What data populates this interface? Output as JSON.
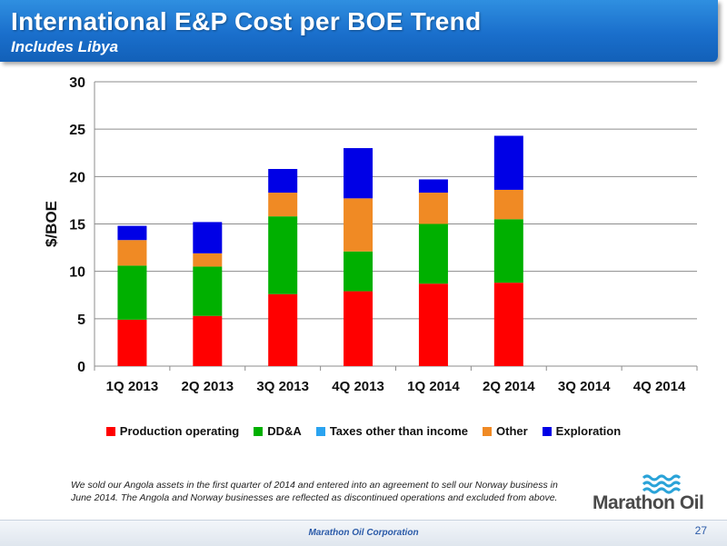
{
  "header": {
    "title": "International E&P Cost per BOE Trend",
    "subtitle": "Includes Libya"
  },
  "chart_data": {
    "type": "bar",
    "stacked": true,
    "title": "",
    "xlabel": "",
    "ylabel": "$/BOE",
    "ylim": [
      0,
      30
    ],
    "yticks": [
      0,
      5,
      10,
      15,
      20,
      25,
      30
    ],
    "grid": true,
    "legend_position": "bottom",
    "categories": [
      "1Q 2013",
      "2Q 2013",
      "3Q 2013",
      "4Q 2013",
      "1Q 2014",
      "2Q 2014",
      "3Q 2014",
      "4Q 2014"
    ],
    "series": [
      {
        "name": "Production operating",
        "color": "#ff0000",
        "values": [
          4.9,
          5.3,
          7.6,
          7.9,
          8.7,
          8.8,
          null,
          null
        ]
      },
      {
        "name": "DD&A",
        "color": "#00b000",
        "values": [
          5.7,
          5.2,
          8.2,
          4.2,
          6.3,
          6.7,
          null,
          null
        ]
      },
      {
        "name": "Taxes other than income",
        "color": "#2aa3f0",
        "values": [
          0,
          0,
          0,
          0,
          0,
          0,
          null,
          null
        ]
      },
      {
        "name": "Other",
        "color": "#f08a24",
        "values": [
          2.7,
          1.4,
          2.5,
          5.6,
          3.3,
          3.1,
          null,
          null
        ]
      },
      {
        "name": "Exploration",
        "color": "#0000e6",
        "values": [
          1.5,
          3.3,
          2.5,
          5.3,
          1.4,
          5.7,
          null,
          null
        ]
      }
    ]
  },
  "footnote": "We sold our Angola assets in the first quarter of 2014 and entered into an agreement to sell our Norway business in June 2014. The Angola and Norway businesses are reflected as discontinued operations and excluded from above.",
  "logo": {
    "text": "Marathon Oil",
    "icon": "marathon-oil-wave-logo"
  },
  "footer": {
    "company": "Marathon Oil Corporation",
    "page_number": "27"
  }
}
